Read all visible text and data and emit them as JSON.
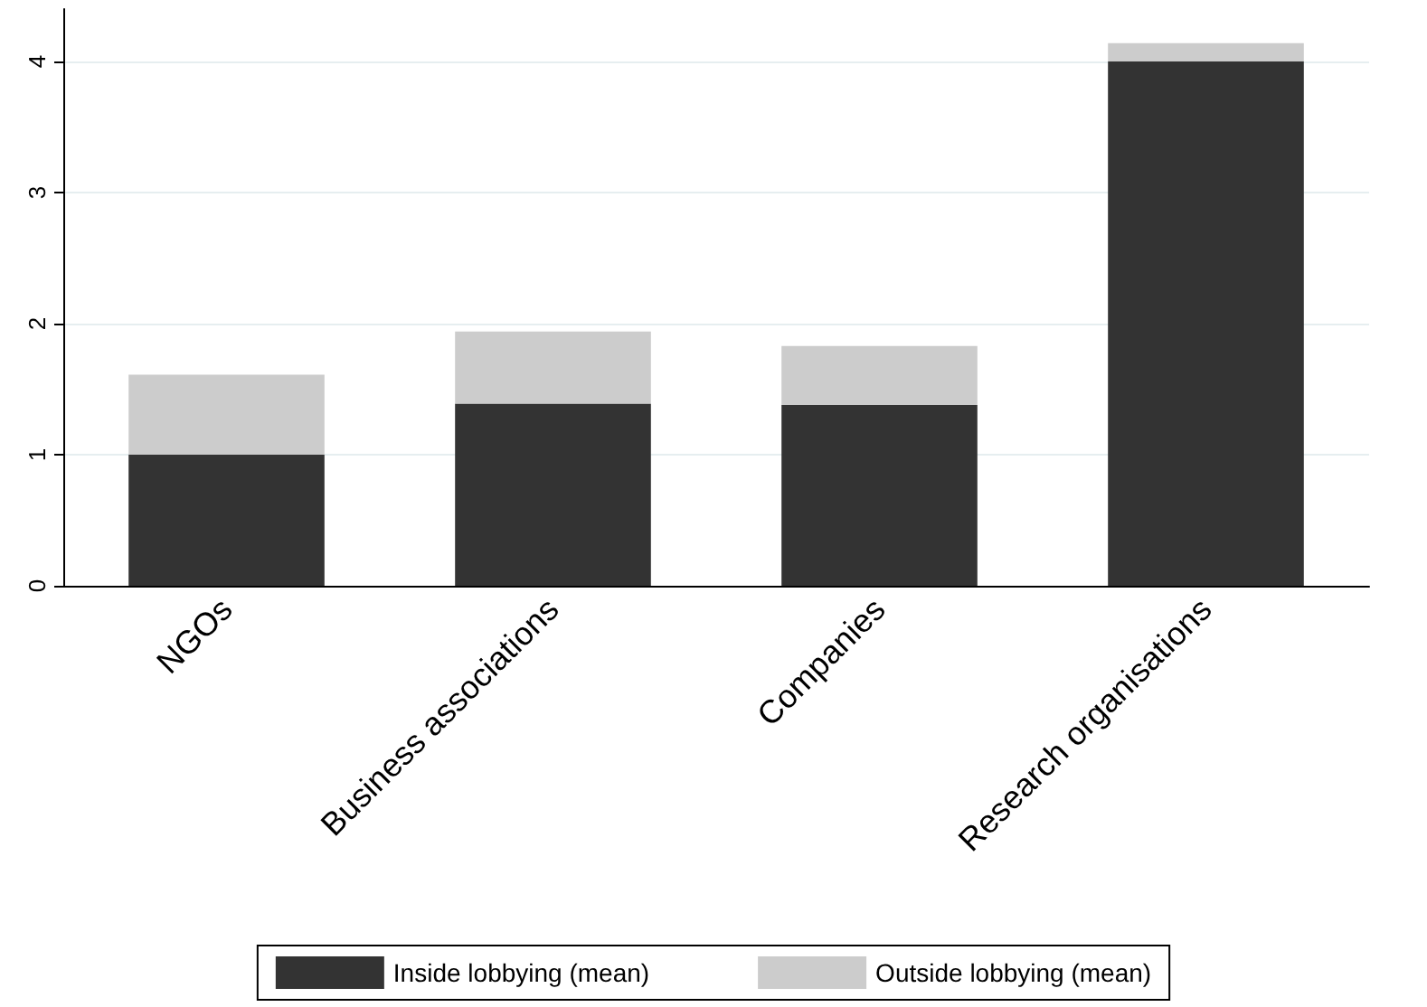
{
  "chart_data": {
    "type": "bar",
    "stacked": true,
    "categories": [
      "NGOs",
      "Business associations",
      "Companies",
      "Research organisations"
    ],
    "series": [
      {
        "name": "Inside lobbying (mean)",
        "color": "#333333",
        "values": [
          1.0,
          1.39,
          1.38,
          4.0
        ]
      },
      {
        "name": "Outside lobbying (mean)",
        "color": "#cccccc",
        "values": [
          0.61,
          0.55,
          0.45,
          0.14
        ]
      }
    ],
    "ylim": [
      0,
      4.4
    ],
    "yticks": [
      0,
      1,
      2,
      3,
      4
    ],
    "grid": "y",
    "legend": "bottom"
  }
}
